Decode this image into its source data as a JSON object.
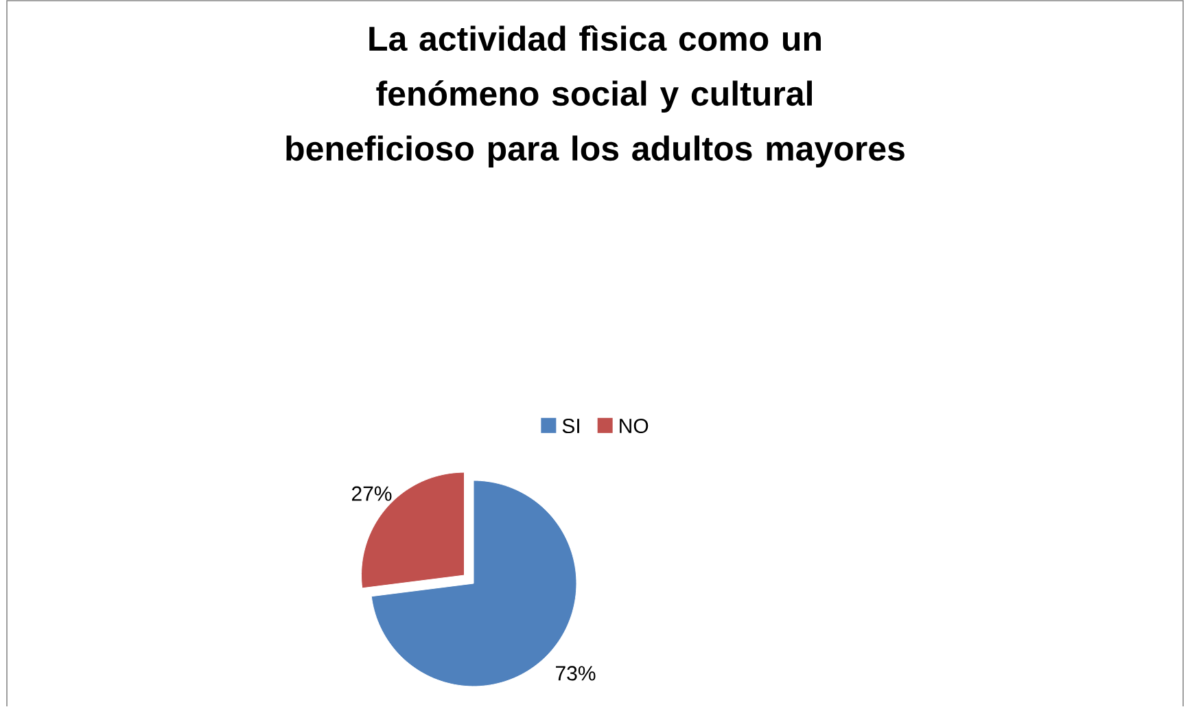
{
  "chart_data": {
    "type": "pie",
    "title": "La actividad fìsica como un fenómeno social y cultural beneficioso para los adultos mayores",
    "categories": [
      "SI",
      "NO"
    ],
    "values": [
      73,
      27
    ],
    "value_labels": [
      "73%",
      "27%"
    ],
    "colors": [
      "#4f81bd",
      "#c0504d"
    ],
    "legend": "top"
  }
}
